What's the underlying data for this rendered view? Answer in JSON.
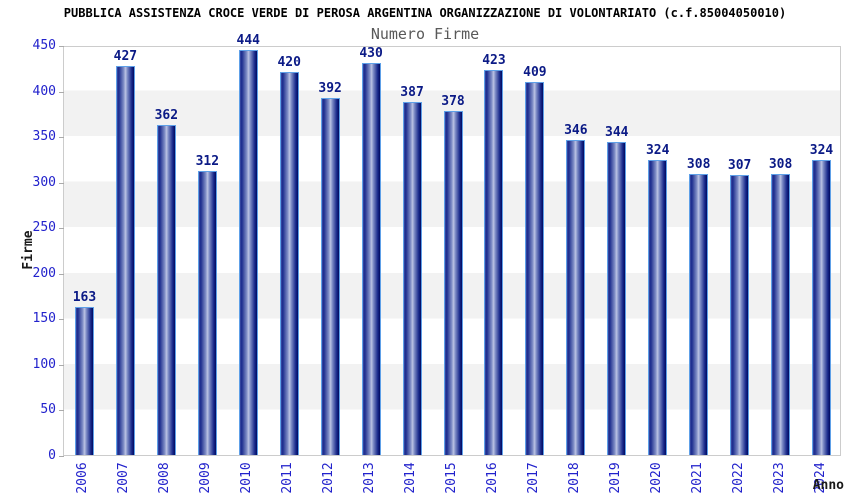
{
  "header": {
    "title": "PUBBLICA ASSISTENZA CROCE VERDE DI PEROSA ARGENTINA ORGANIZZAZIONE DI VOLONTARIATO (c.f.85004050010)",
    "subtitle": "Numero Firme"
  },
  "chart_data": {
    "type": "bar",
    "title": "Numero Firme",
    "xlabel": "Anno",
    "ylabel": "Firme",
    "categories": [
      "2006",
      "2007",
      "2008",
      "2009",
      "2010",
      "2011",
      "2012",
      "2013",
      "2014",
      "2015",
      "2016",
      "2017",
      "2018",
      "2019",
      "2020",
      "2021",
      "2022",
      "2023",
      "2024"
    ],
    "values": [
      163,
      427,
      362,
      312,
      444,
      420,
      392,
      430,
      387,
      378,
      423,
      409,
      346,
      344,
      324,
      308,
      307,
      308,
      324
    ],
    "ylim": [
      0,
      450
    ],
    "yticks": [
      0,
      50,
      100,
      150,
      200,
      250,
      300,
      350,
      400,
      450
    ],
    "grid": "alternating horizontal bands every 50",
    "legend": "none",
    "bar_labels_shown": true
  },
  "colors": {
    "tick_label_blue": "#2222cc",
    "value_label_navy": "#0b1a86",
    "bar_edge_dark": "#1a2a8c",
    "bar_center_light": "#bcc4e4",
    "bar_outline": "#5ea0e8",
    "band_gray": "#f2f2f2",
    "plot_border": "#cccccc",
    "title_black": "#000000",
    "subtitle_gray": "#595959",
    "axis_label_dark": "#1a1a1a"
  }
}
